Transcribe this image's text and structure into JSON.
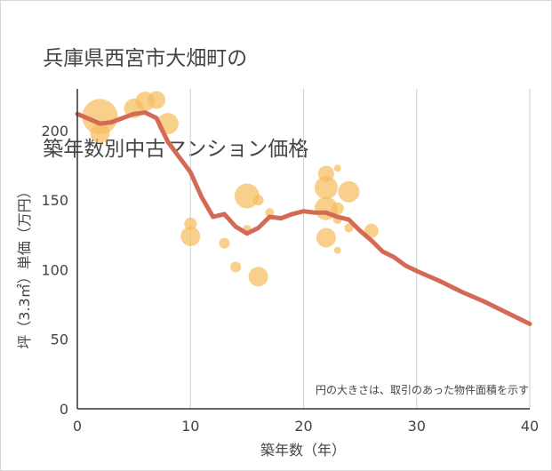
{
  "chart_data": {
    "type": "scatter",
    "title_lines": [
      "兵庫県西宮市大畑町の",
      "築年数別中古マンション価格"
    ],
    "xlabel": "築年数（年）",
    "ylabel": "坪（3.3㎡）単価（万円）",
    "note": "円の大きさは、取引のあった物件面積を示す",
    "xlim": [
      0,
      40
    ],
    "ylim": [
      0,
      230
    ],
    "x_ticks": [
      0,
      10,
      20,
      30,
      40
    ],
    "y_ticks": [
      0,
      50,
      100,
      150,
      200
    ],
    "grid": "vertical",
    "colors": {
      "bubble": "#f5be5f",
      "line": "#d46a55",
      "grid": "#c8d2dc",
      "text": "#444444"
    },
    "scatter_points": [
      {
        "x": 2,
        "y": 210,
        "size": 20
      },
      {
        "x": 2,
        "y": 198,
        "size": 11
      },
      {
        "x": 5,
        "y": 216,
        "size": 11
      },
      {
        "x": 6,
        "y": 221,
        "size": 11
      },
      {
        "x": 7,
        "y": 222,
        "size": 10
      },
      {
        "x": 8,
        "y": 205,
        "size": 12
      },
      {
        "x": 10,
        "y": 133,
        "size": 7
      },
      {
        "x": 10,
        "y": 124,
        "size": 11
      },
      {
        "x": 13,
        "y": 119,
        "size": 6
      },
      {
        "x": 14,
        "y": 102,
        "size": 6
      },
      {
        "x": 15,
        "y": 153,
        "size": 14
      },
      {
        "x": 15,
        "y": 129,
        "size": 5
      },
      {
        "x": 16,
        "y": 150,
        "size": 6
      },
      {
        "x": 16,
        "y": 95,
        "size": 11
      },
      {
        "x": 17,
        "y": 141,
        "size": 5
      },
      {
        "x": 22,
        "y": 169,
        "size": 9
      },
      {
        "x": 22,
        "y": 159,
        "size": 13
      },
      {
        "x": 22,
        "y": 144,
        "size": 13
      },
      {
        "x": 22,
        "y": 123,
        "size": 11
      },
      {
        "x": 23,
        "y": 173,
        "size": 4
      },
      {
        "x": 23,
        "y": 144,
        "size": 7
      },
      {
        "x": 23,
        "y": 136,
        "size": 5
      },
      {
        "x": 23,
        "y": 114,
        "size": 4
      },
      {
        "x": 24,
        "y": 156,
        "size": 12
      },
      {
        "x": 24,
        "y": 130,
        "size": 5
      },
      {
        "x": 26,
        "y": 128,
        "size": 8
      }
    ],
    "trend_line": {
      "x": [
        0,
        2,
        3,
        4,
        5,
        6,
        7,
        8,
        9,
        10,
        11,
        12,
        13,
        14,
        15,
        16,
        17,
        18,
        19,
        20,
        21,
        22,
        23,
        24,
        25,
        26,
        27,
        28,
        29,
        30,
        32,
        34,
        36,
        38,
        40
      ],
      "y": [
        212,
        205,
        206,
        209,
        212,
        213,
        209,
        192,
        181,
        170,
        152,
        138,
        140,
        131,
        126,
        130,
        138,
        137,
        140,
        142,
        141,
        141,
        138,
        136,
        128,
        121,
        113,
        109,
        103,
        99,
        92,
        84,
        77,
        69,
        61
      ]
    }
  }
}
